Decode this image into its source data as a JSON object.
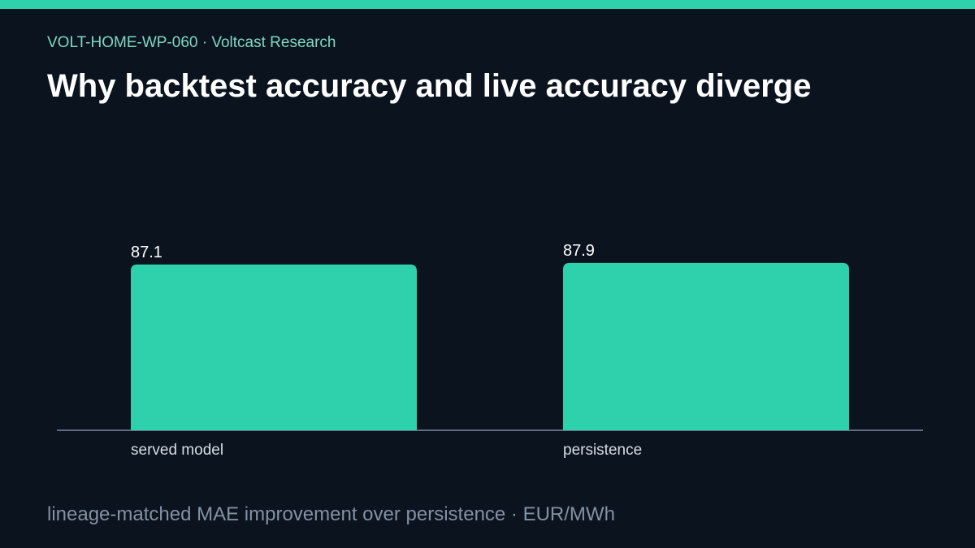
{
  "header": {
    "eyebrow": "VOLT-HOME-WP-060 · Voltcast Research",
    "title": "Why backtest accuracy and live accuracy diverge"
  },
  "footer": {
    "note": "lineage-matched MAE improvement over persistence · EUR/MWh"
  },
  "colors": {
    "background": "#0a131e",
    "accent": "#2fd0ac",
    "bar": "#2fd0ac",
    "axis": "#7a8ba0"
  },
  "chart_data": {
    "type": "bar",
    "categories": [
      "served model",
      "persistence"
    ],
    "values": [
      87.1,
      87.9
    ],
    "ylim": [
      0,
      100
    ],
    "grid": false,
    "legend": false,
    "xlabel": "",
    "ylabel": ""
  }
}
